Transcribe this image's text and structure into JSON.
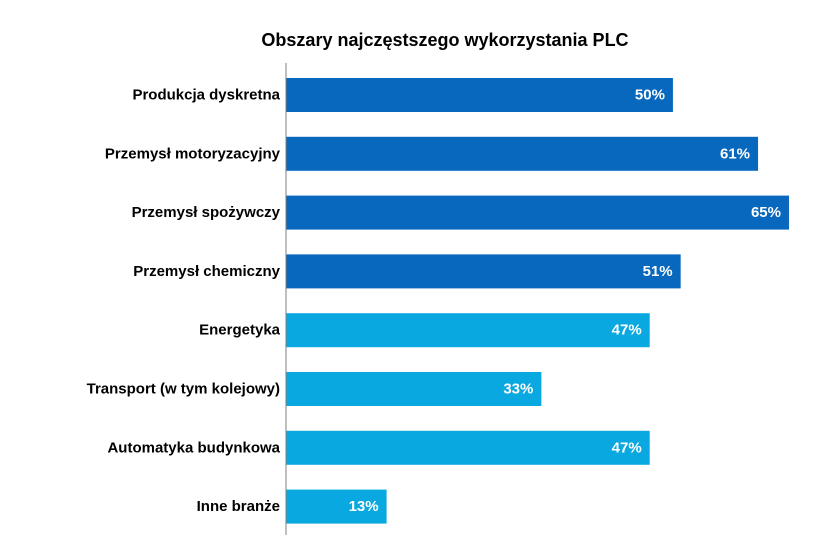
{
  "chart_data": {
    "type": "bar",
    "orientation": "horizontal",
    "title": "Obszary najczęstszego wykorzystania PLC",
    "xlabel": "",
    "ylabel": "",
    "xlim": [
      0,
      65
    ],
    "grid": false,
    "legend": "none",
    "categories": [
      "Produkcja dyskretna",
      "Przemysł motoryzacyjny",
      "Przemysł spożywczy",
      "Przemysł chemiczny",
      "Energetyka",
      "Transport (w tym kolejowy)",
      "Automatyka budynkowa",
      "Inne branże"
    ],
    "values": [
      50,
      61,
      65,
      51,
      47,
      33,
      47,
      13
    ],
    "value_labels": [
      "50%",
      "61%",
      "65%",
      "51%",
      "47%",
      "33%",
      "47%",
      "13%"
    ],
    "colors": [
      "#0868be",
      "#0868be",
      "#0868be",
      "#0868be",
      "#0aa8e0",
      "#0aa8e0",
      "#0aa8e0",
      "#0aa8e0"
    ],
    "axis_color": "#7f7f7f"
  }
}
